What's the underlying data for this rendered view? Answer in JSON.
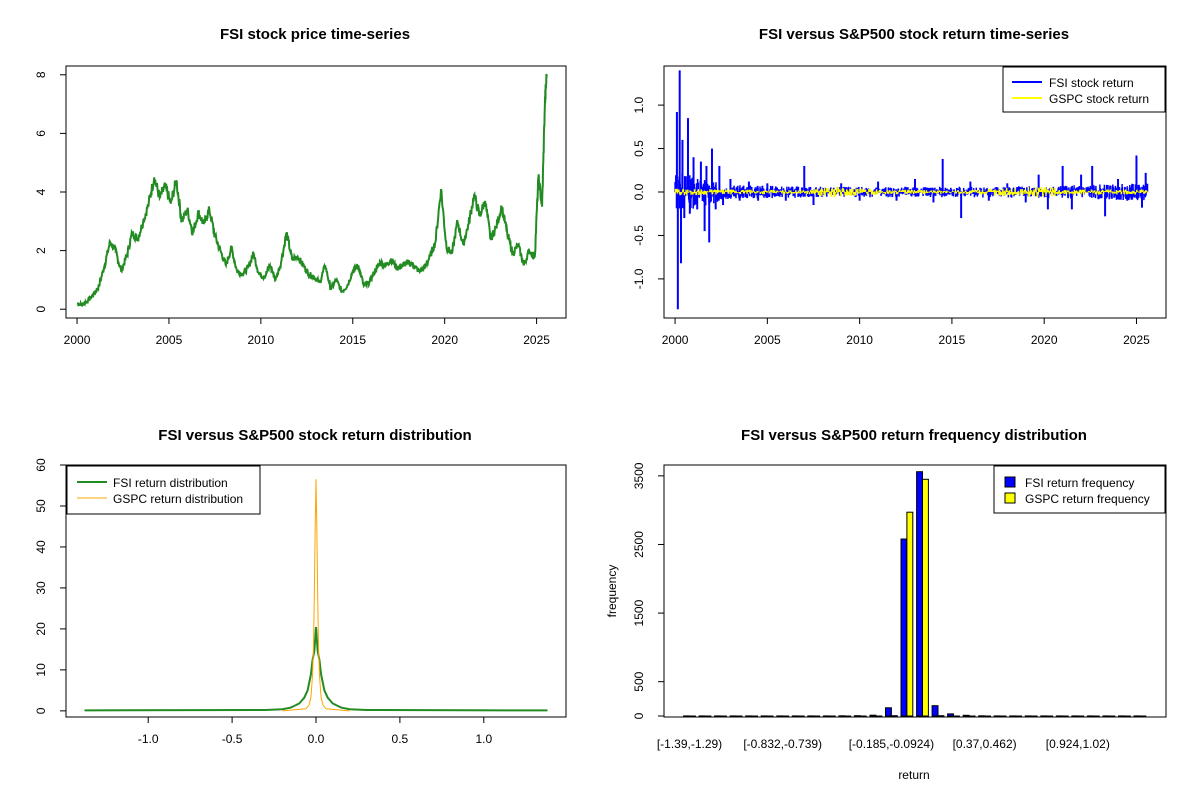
{
  "chart_data": [
    {
      "type": "line",
      "title": "FSI stock price time-series",
      "xlabel": "",
      "ylabel": "",
      "xlim": [
        1999.4,
        2026.6
      ],
      "ylim": [
        -0.3,
        8.3
      ],
      "xticks": [
        2000,
        2005,
        2010,
        2015,
        2020,
        2025
      ],
      "yticks": [
        0,
        2,
        4,
        6,
        8
      ],
      "color": "#228B22",
      "series": [
        {
          "name": "FSI stock price",
          "x": [
            2000.0,
            2000.3,
            2000.6,
            2000.9,
            2001.2,
            2001.5,
            2001.8,
            2002.1,
            2002.4,
            2002.7,
            2003.0,
            2003.3,
            2003.6,
            2003.9,
            2004.2,
            2004.5,
            2004.8,
            2005.1,
            2005.4,
            2005.7,
            2006.0,
            2006.3,
            2006.6,
            2006.9,
            2007.2,
            2007.5,
            2007.8,
            2008.1,
            2008.4,
            2008.7,
            2009.0,
            2009.3,
            2009.6,
            2009.9,
            2010.2,
            2010.5,
            2010.8,
            2011.1,
            2011.4,
            2011.7,
            2012.0,
            2012.3,
            2012.6,
            2012.9,
            2013.2,
            2013.5,
            2013.8,
            2014.1,
            2014.4,
            2014.7,
            2015.0,
            2015.3,
            2015.6,
            2015.9,
            2016.2,
            2016.5,
            2016.8,
            2017.1,
            2017.4,
            2017.7,
            2018.0,
            2018.3,
            2018.6,
            2018.9,
            2019.2,
            2019.5,
            2019.8,
            2020.1,
            2020.4,
            2020.7,
            2021.0,
            2021.3,
            2021.6,
            2021.9,
            2022.2,
            2022.5,
            2022.8,
            2023.1,
            2023.4,
            2023.7,
            2024.0,
            2024.3,
            2024.6,
            2024.9,
            2025.1,
            2025.3,
            2025.45,
            2025.55
          ],
          "values": [
            0.2,
            0.15,
            0.3,
            0.5,
            0.8,
            1.5,
            2.3,
            2.0,
            1.3,
            1.8,
            2.6,
            2.4,
            3.0,
            3.6,
            4.5,
            3.8,
            4.2,
            3.6,
            4.4,
            3.0,
            3.4,
            2.6,
            3.3,
            2.9,
            3.4,
            2.5,
            2.0,
            1.5,
            2.1,
            1.3,
            1.2,
            1.4,
            1.9,
            1.2,
            1.1,
            1.5,
            1.0,
            1.6,
            2.6,
            1.7,
            1.8,
            1.5,
            1.2,
            1.1,
            0.9,
            1.5,
            0.7,
            1.0,
            0.6,
            0.8,
            1.3,
            1.5,
            0.8,
            0.9,
            1.3,
            1.6,
            1.5,
            1.7,
            1.4,
            1.5,
            1.6,
            1.5,
            1.3,
            1.4,
            1.8,
            2.3,
            4.1,
            2.1,
            1.9,
            3.0,
            2.2,
            2.9,
            3.9,
            3.2,
            3.7,
            2.4,
            2.8,
            3.5,
            2.6,
            1.9,
            2.2,
            1.5,
            2.0,
            1.8,
            4.5,
            3.5,
            7.0,
            8.0
          ]
        }
      ]
    },
    {
      "type": "line",
      "title": "FSI versus S&P500 stock return time-series",
      "xlabel": "",
      "ylabel": "",
      "xlim": [
        1999.4,
        2026.6
      ],
      "ylim": [
        -1.45,
        1.45
      ],
      "xticks": [
        2000,
        2005,
        2010,
        2015,
        2020,
        2025
      ],
      "yticks": [
        -1.0,
        -0.5,
        0.0,
        0.5,
        1.0
      ],
      "ytick_labels": [
        "-1.0",
        "-0.5",
        "0.0",
        "0.5",
        "1.0"
      ],
      "legend": [
        "FSI stock return",
        "GSPC stock return"
      ],
      "legend_position": "top-right",
      "series": [
        {
          "name": "FSI stock return",
          "color": "#0000FF",
          "spikes": [
            [
              2000.1,
              0.92
            ],
            [
              2000.15,
              -1.35
            ],
            [
              2000.25,
              1.4
            ],
            [
              2000.32,
              -0.82
            ],
            [
              2000.4,
              0.6
            ],
            [
              2000.5,
              -0.3
            ],
            [
              2000.7,
              0.85
            ],
            [
              2000.8,
              -0.25
            ],
            [
              2001.0,
              0.4
            ],
            [
              2001.2,
              -0.2
            ],
            [
              2001.4,
              0.35
            ],
            [
              2001.6,
              -0.45
            ],
            [
              2001.7,
              0.3
            ],
            [
              2001.85,
              -0.58
            ],
            [
              2002.0,
              0.5
            ],
            [
              2002.2,
              -0.2
            ],
            [
              2002.4,
              0.3
            ],
            [
              2002.6,
              -0.15
            ],
            [
              2003.0,
              0.15
            ],
            [
              2003.5,
              -0.1
            ],
            [
              2004.0,
              0.12
            ],
            [
              2004.5,
              -0.1
            ],
            [
              2005.0,
              0.1
            ],
            [
              2006.0,
              -0.1
            ],
            [
              2007.0,
              0.3
            ],
            [
              2007.5,
              -0.15
            ],
            [
              2009.0,
              0.1
            ],
            [
              2010.0,
              -0.1
            ],
            [
              2011.0,
              0.12
            ],
            [
              2012.0,
              -0.1
            ],
            [
              2013.0,
              0.15
            ],
            [
              2014.0,
              -0.12
            ],
            [
              2014.5,
              0.38
            ],
            [
              2015.5,
              -0.3
            ],
            [
              2016.0,
              0.12
            ],
            [
              2017.0,
              -0.1
            ],
            [
              2018.0,
              0.1
            ],
            [
              2019.0,
              -0.12
            ],
            [
              2019.7,
              0.2
            ],
            [
              2020.2,
              -0.2
            ],
            [
              2021.0,
              0.3
            ],
            [
              2021.5,
              -0.2
            ],
            [
              2022.0,
              0.2
            ],
            [
              2022.6,
              0.3
            ],
            [
              2023.3,
              -0.28
            ],
            [
              2024.0,
              0.15
            ],
            [
              2024.5,
              -0.1
            ],
            [
              2025.0,
              0.42
            ],
            [
              2025.3,
              -0.18
            ],
            [
              2025.5,
              0.22
            ]
          ],
          "envelope": [
            [
              2000.0,
              0.25
            ],
            [
              2003.0,
              0.08
            ],
            [
              2008.0,
              0.06
            ],
            [
              2015.0,
              0.06
            ],
            [
              2020.0,
              0.07
            ],
            [
              2025.6,
              0.1
            ]
          ]
        },
        {
          "name": "GSPC stock return",
          "color": "#FFFF00",
          "envelope": [
            [
              2000.0,
              0.04
            ],
            [
              2003.0,
              0.03
            ],
            [
              2007.0,
              0.02
            ],
            [
              2008.8,
              0.07
            ],
            [
              2009.5,
              0.05
            ],
            [
              2011.0,
              0.03
            ],
            [
              2015.0,
              0.02
            ],
            [
              2020.2,
              0.07
            ],
            [
              2021.0,
              0.03
            ],
            [
              2025.6,
              0.03
            ]
          ]
        }
      ]
    },
    {
      "type": "line",
      "title": "FSI versus S&P500 stock return distribution",
      "xlabel": "",
      "ylabel": "",
      "xlim": [
        -1.49,
        1.49
      ],
      "ylim": [
        -1.5,
        60
      ],
      "xticks": [
        -1.0,
        -0.5,
        0.0,
        0.5,
        1.0
      ],
      "xtick_labels": [
        "-1.0",
        "-0.5",
        "0.0",
        "0.5",
        "1.0"
      ],
      "yticks": [
        0,
        10,
        20,
        30,
        40,
        50,
        60
      ],
      "legend": [
        "FSI return distribution",
        "GSPC return distribution"
      ],
      "legend_position": "top-left",
      "series": [
        {
          "name": "FSI return distribution",
          "color": "#228B22",
          "x": [
            -1.38,
            -0.3,
            -0.2,
            -0.15,
            -0.1,
            -0.07,
            -0.05,
            -0.03,
            -0.02,
            -0.01,
            0.0,
            0.01,
            0.02,
            0.03,
            0.05,
            0.07,
            0.1,
            0.15,
            0.2,
            0.3,
            1.38
          ],
          "values": [
            0.1,
            0.2,
            0.4,
            0.8,
            1.8,
            3.2,
            5.0,
            9.0,
            12.5,
            14.5,
            20.5,
            14.5,
            12.5,
            9.0,
            5.0,
            3.2,
            1.8,
            0.8,
            0.4,
            0.2,
            0.1
          ]
        },
        {
          "name": "GSPC return distribution",
          "color": "#FFA500",
          "x": [
            -0.2,
            -0.06,
            -0.04,
            -0.03,
            -0.02,
            -0.015,
            -0.01,
            -0.005,
            0.0,
            0.005,
            0.01,
            0.015,
            0.02,
            0.03,
            0.04,
            0.06,
            0.2
          ],
          "values": [
            0.0,
            0.5,
            1.5,
            3.5,
            9.0,
            16.0,
            28.0,
            45.0,
            56.5,
            45.0,
            28.0,
            16.0,
            9.0,
            3.5,
            1.5,
            0.5,
            0.0
          ]
        }
      ]
    },
    {
      "type": "bar",
      "title": "FSI versus S&P500 return frequency distribution",
      "xlabel": "return",
      "ylabel": "frequency",
      "ylim": [
        0,
        3600
      ],
      "yticks": [
        0,
        500,
        1500,
        2500,
        3500
      ],
      "bin_count": 30,
      "labeled_bins": {
        "0": "[-1.39,-1.29)",
        "6": "[-0.832,-0.739)",
        "13": "[-0.185,-0.0924)",
        "19": "[0.37,0.462)",
        "25": "[0.924,1.02)"
      },
      "legend": [
        "FSI return frequency",
        "GSPC return frequency"
      ],
      "legend_position": "top-right",
      "series": [
        {
          "name": "FSI return frequency",
          "color": "#0000FF",
          "values": [
            1,
            1,
            1,
            1,
            1,
            1,
            1,
            1,
            2,
            2,
            3,
            5,
            12,
            120,
            2580,
            3560,
            150,
            30,
            10,
            3,
            2,
            1,
            1,
            1,
            1,
            1,
            1,
            1,
            1,
            2
          ]
        },
        {
          "name": "GSPC return frequency",
          "color": "#FFFF00",
          "values": [
            0,
            0,
            0,
            0,
            0,
            0,
            0,
            0,
            0,
            0,
            0,
            0,
            0,
            5,
            2970,
            3450,
            5,
            0,
            0,
            0,
            0,
            0,
            0,
            0,
            0,
            0,
            0,
            0,
            0,
            0
          ]
        }
      ]
    }
  ]
}
